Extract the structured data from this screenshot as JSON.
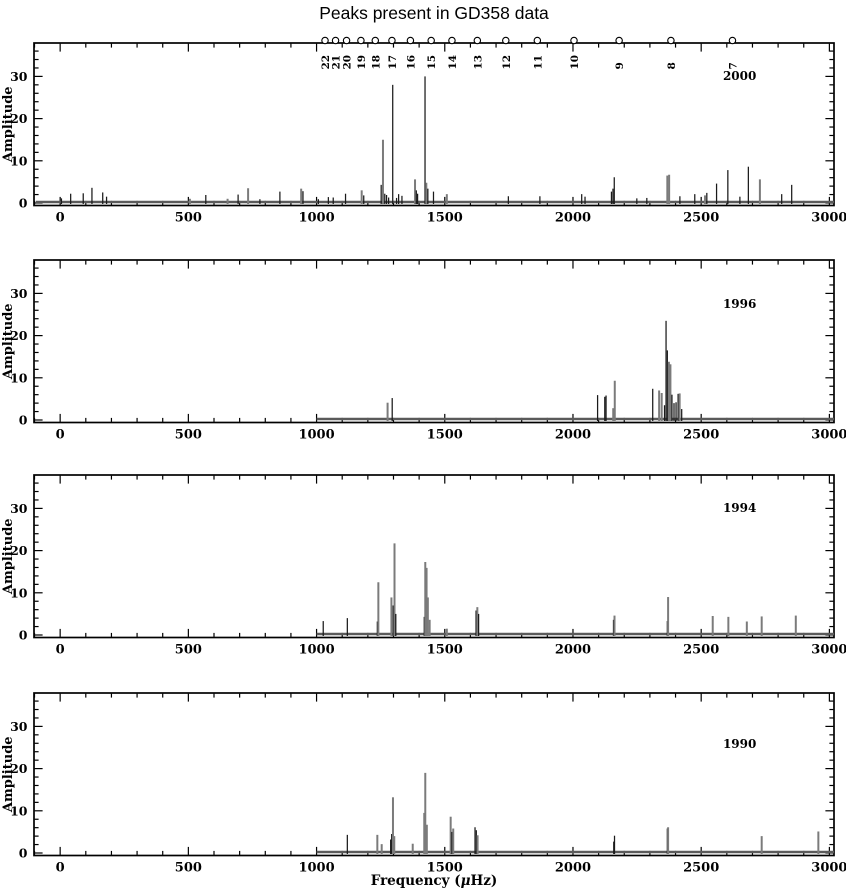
{
  "page": {
    "title": "Peaks present in GD358 data"
  },
  "chart_data": {
    "type": "line",
    "subtype": "stem-amplitude-spectra",
    "title": "Peaks present in GD358 data",
    "xlabel": "Frequency (μHz)",
    "ylabel": "Amplitude",
    "xlim": [
      -102,
      3018
    ],
    "ylim": [
      -0.6,
      37.9
    ],
    "x_major_ticks": [
      0,
      500,
      1000,
      1500,
      2000,
      2500,
      3000
    ],
    "x_minor_step": 100,
    "y_major_ticks": [
      0,
      10,
      20,
      30
    ],
    "y_minor_step": 2,
    "grid": "off",
    "legend": "none",
    "colors": {
      "dark": "#1a1a1a",
      "gray": "#7b7b7b",
      "baseline": "#5a5a5a",
      "frame": "#000000"
    },
    "mode_markers": {
      "symbol": "open-circle",
      "labels": [
        "22",
        "21",
        "20",
        "19",
        "18",
        "17",
        "16",
        "15",
        "14",
        "13",
        "12",
        "11",
        "10",
        "9",
        "8",
        "7"
      ],
      "freqs": [
        1033,
        1074,
        1117,
        1173,
        1229,
        1294,
        1366,
        1447,
        1528,
        1627,
        1738,
        1861,
        2004,
        2180,
        2382,
        2622
      ]
    },
    "panels": [
      {
        "year": "2000",
        "coverage": [
          -95,
          3018
        ],
        "year_label_freq": 2650,
        "year_label_amp": 29.1,
        "peaks": [
          [
            5,
            1.1,
            "d"
          ],
          [
            41,
            2.2,
            "d"
          ],
          [
            90,
            2.3,
            "d"
          ],
          [
            124,
            3.6,
            "d"
          ],
          [
            166,
            2.5,
            "d"
          ],
          [
            181,
            1.5,
            "d"
          ],
          [
            506,
            1.0,
            "g"
          ],
          [
            568,
            1.9,
            "d"
          ],
          [
            653,
            1.0,
            "g"
          ],
          [
            694,
            2.0,
            "d"
          ],
          [
            733,
            3.5,
            "g"
          ],
          [
            779,
            0.9,
            "d"
          ],
          [
            857,
            2.7,
            "d"
          ],
          [
            940,
            3.4,
            "g"
          ],
          [
            947,
            2.8,
            "d"
          ],
          [
            1007,
            0.9,
            "d"
          ],
          [
            1046,
            1.4,
            "d"
          ],
          [
            1065,
            1.3,
            "d"
          ],
          [
            1113,
            2.2,
            "d"
          ],
          [
            1176,
            3.0,
            "g"
          ],
          [
            1184,
            1.8,
            "d"
          ],
          [
            1252,
            4.3,
            "d"
          ],
          [
            1259,
            15.0,
            "g"
          ],
          [
            1266,
            2.2,
            "d"
          ],
          [
            1273,
            1.9,
            "d"
          ],
          [
            1281,
            1.3,
            "d"
          ],
          [
            1297,
            28.0,
            "d"
          ],
          [
            1312,
            1.2,
            "d"
          ],
          [
            1320,
            2.1,
            "d"
          ],
          [
            1333,
            1.7,
            "d"
          ],
          [
            1384,
            5.6,
            "g"
          ],
          [
            1389,
            3.0,
            "d"
          ],
          [
            1394,
            2.2,
            "d"
          ],
          [
            1423,
            30.0,
            "d"
          ],
          [
            1428,
            4.8,
            "g"
          ],
          [
            1434,
            3.4,
            "d"
          ],
          [
            1456,
            2.7,
            "d"
          ],
          [
            1508,
            2.1,
            "g"
          ],
          [
            1748,
            1.6,
            "d"
          ],
          [
            1871,
            1.6,
            "d"
          ],
          [
            2034,
            2.1,
            "d"
          ],
          [
            2047,
            1.5,
            "d"
          ],
          [
            2150,
            2.7,
            "d"
          ],
          [
            2156,
            3.4,
            "d"
          ],
          [
            2161,
            6.1,
            "d"
          ],
          [
            2249,
            1.1,
            "d"
          ],
          [
            2288,
            1.2,
            "d"
          ],
          [
            2368,
            6.5,
            "g"
          ],
          [
            2375,
            6.7,
            "g"
          ],
          [
            2417,
            1.6,
            "d"
          ],
          [
            2475,
            2.1,
            "d"
          ],
          [
            2515,
            1.8,
            "g"
          ],
          [
            2522,
            2.4,
            "d"
          ],
          [
            2560,
            4.6,
            "d"
          ],
          [
            2604,
            7.8,
            "d"
          ],
          [
            2651,
            1.5,
            "d"
          ],
          [
            2684,
            8.6,
            "d"
          ],
          [
            2729,
            5.6,
            "g"
          ],
          [
            2814,
            2.1,
            "d"
          ],
          [
            2853,
            4.3,
            "d"
          ]
        ]
      },
      {
        "year": "1996",
        "coverage": [
          1000,
          3018
        ],
        "year_label_freq": 2650,
        "year_label_amp": 26.5,
        "peaks": [
          [
            1277,
            4.1,
            "g"
          ],
          [
            1295,
            5.2,
            "d"
          ],
          [
            2096,
            5.9,
            "d"
          ],
          [
            2124,
            5.5,
            "d"
          ],
          [
            2129,
            5.8,
            "d"
          ],
          [
            2157,
            2.8,
            "g"
          ],
          [
            2163,
            9.3,
            "g"
          ],
          [
            2311,
            7.4,
            "d"
          ],
          [
            2336,
            7.0,
            "g"
          ],
          [
            2346,
            6.4,
            "g"
          ],
          [
            2357,
            3.5,
            "d"
          ],
          [
            2363,
            23.5,
            "d"
          ],
          [
            2368,
            16.5,
            "d"
          ],
          [
            2374,
            13.8,
            "g"
          ],
          [
            2380,
            13.2,
            "g"
          ],
          [
            2386,
            6.0,
            "d"
          ],
          [
            2394,
            4.0,
            "d"
          ],
          [
            2402,
            4.2,
            "d"
          ],
          [
            2410,
            6.2,
            "d"
          ],
          [
            2416,
            6.3,
            "g"
          ],
          [
            2424,
            2.6,
            "d"
          ]
        ]
      },
      {
        "year": "1994",
        "coverage": [
          1000,
          3018
        ],
        "year_label_freq": 2650,
        "year_label_amp": 29.1,
        "peaks": [
          [
            1026,
            3.3,
            "d"
          ],
          [
            1120,
            4.0,
            "d"
          ],
          [
            1237,
            3.2,
            "d"
          ],
          [
            1241,
            12.5,
            "g"
          ],
          [
            1292,
            8.9,
            "g"
          ],
          [
            1299,
            7.0,
            "d"
          ],
          [
            1304,
            21.7,
            "g"
          ],
          [
            1309,
            5.0,
            "d"
          ],
          [
            1420,
            4.3,
            "d"
          ],
          [
            1424,
            17.3,
            "g"
          ],
          [
            1429,
            15.9,
            "g"
          ],
          [
            1434,
            8.9,
            "g"
          ],
          [
            1441,
            3.6,
            "g"
          ],
          [
            1508,
            1.5,
            "g"
          ],
          [
            1622,
            5.8,
            "d"
          ],
          [
            1627,
            6.6,
            "g"
          ],
          [
            1632,
            5.0,
            "d"
          ],
          [
            2158,
            3.6,
            "d"
          ],
          [
            2162,
            4.6,
            "g"
          ],
          [
            2368,
            3.3,
            "d"
          ],
          [
            2371,
            9.0,
            "g"
          ],
          [
            2545,
            4.5,
            "g"
          ],
          [
            2606,
            4.3,
            "g"
          ],
          [
            2678,
            3.2,
            "g"
          ],
          [
            2736,
            4.4,
            "g"
          ],
          [
            2869,
            4.6,
            "g"
          ]
        ]
      },
      {
        "year": "1990",
        "coverage": [
          1000,
          3018
        ],
        "year_label_freq": 2650,
        "year_label_amp": 24.9,
        "peaks": [
          [
            1120,
            4.3,
            "d"
          ],
          [
            1237,
            4.3,
            "g"
          ],
          [
            1254,
            2.1,
            "g"
          ],
          [
            1289,
            3.2,
            "d"
          ],
          [
            1293,
            4.5,
            "d"
          ],
          [
            1298,
            13.2,
            "g"
          ],
          [
            1303,
            4.0,
            "g"
          ],
          [
            1375,
            2.2,
            "g"
          ],
          [
            1420,
            9.5,
            "g"
          ],
          [
            1424,
            19.0,
            "g"
          ],
          [
            1430,
            6.7,
            "g"
          ],
          [
            1523,
            8.6,
            "g"
          ],
          [
            1528,
            5.0,
            "d"
          ],
          [
            1533,
            5.8,
            "g"
          ],
          [
            1618,
            6.1,
            "d"
          ],
          [
            1623,
            5.4,
            "d"
          ],
          [
            1628,
            4.2,
            "g"
          ],
          [
            2159,
            2.7,
            "d"
          ],
          [
            2162,
            4.1,
            "d"
          ],
          [
            2368,
            5.8,
            "d"
          ],
          [
            2371,
            6.1,
            "g"
          ],
          [
            2736,
            4.0,
            "g"
          ],
          [
            2957,
            5.1,
            "g"
          ]
        ]
      }
    ]
  }
}
